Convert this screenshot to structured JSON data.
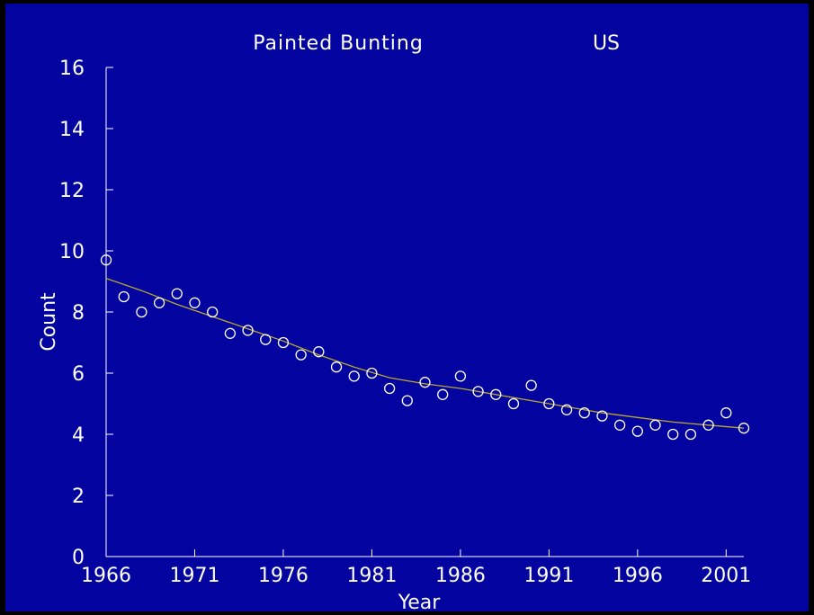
{
  "colors": {
    "background": "#0303a0",
    "axis": "#ffffff",
    "marker": "#ffffff",
    "trend": "#b8a830"
  },
  "chart_data": {
    "type": "scatter",
    "title": "Painted Bunting",
    "subtitle": "US",
    "xlabel": "Year",
    "ylabel": "Count",
    "xlim": [
      1966,
      2002
    ],
    "ylim": [
      0,
      16
    ],
    "x_ticks": [
      "1966",
      "1971",
      "1976",
      "1981",
      "1986",
      "1991",
      "1996",
      "2001"
    ],
    "y_ticks": [
      "0",
      "2",
      "4",
      "6",
      "8",
      "10",
      "12",
      "14",
      "16"
    ],
    "grid": false,
    "series": [
      {
        "type": "scatter",
        "x": [
          1966,
          1967,
          1968,
          1969,
          1970,
          1971,
          1972,
          1973,
          1974,
          1975,
          1976,
          1977,
          1978,
          1979,
          1980,
          1981,
          1982,
          1983,
          1984,
          1985,
          1986,
          1987,
          1988,
          1989,
          1990,
          1991,
          1992,
          1993,
          1994,
          1995,
          1996,
          1997,
          1998,
          1999,
          2000,
          2001,
          2002
        ],
        "values": [
          9.7,
          8.5,
          8.0,
          8.3,
          8.6,
          8.3,
          8.0,
          7.3,
          7.4,
          7.1,
          7.0,
          6.6,
          6.7,
          6.2,
          5.9,
          6.0,
          5.5,
          5.1,
          5.7,
          5.3,
          5.9,
          5.4,
          5.3,
          5.0,
          5.6,
          5.0,
          4.8,
          4.7,
          4.6,
          4.3,
          4.1,
          4.3,
          4.0,
          4.0,
          4.3,
          4.7,
          4.2
        ]
      },
      {
        "type": "line",
        "x": [
          1966,
          1968,
          1970,
          1972,
          1974,
          1976,
          1978,
          1980,
          1982,
          1984,
          1986,
          1988,
          1990,
          1992,
          1994,
          1996,
          1998,
          2000,
          2002
        ],
        "values": [
          9.1,
          8.7,
          8.25,
          7.85,
          7.45,
          7.05,
          6.6,
          6.2,
          5.85,
          5.65,
          5.5,
          5.3,
          5.1,
          4.9,
          4.7,
          4.55,
          4.4,
          4.3,
          4.2
        ]
      }
    ]
  }
}
